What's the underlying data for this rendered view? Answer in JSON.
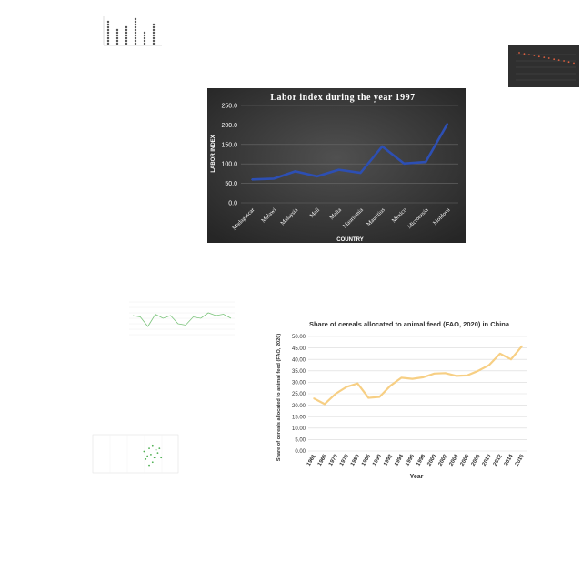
{
  "chart_data": [
    {
      "id": "labor",
      "type": "line",
      "title": "Labor index during the year 1997",
      "xlabel": "COUNTRY",
      "ylabel": "LABOR INDEX",
      "ylim": [
        0,
        250
      ],
      "yticks": [
        "0.0",
        "50.0",
        "100.0",
        "150.0",
        "200.0",
        "250.0"
      ],
      "grid": true,
      "categories": [
        "Madagascar",
        "Malawi",
        "Malaysia",
        "Mali",
        "Malta",
        "Mauritania",
        "Mauritius",
        "Mexico",
        "Micronesia",
        "Moldova"
      ],
      "series": [
        {
          "values": [
            60,
            62,
            81,
            68,
            85,
            77,
            145,
            101,
            105,
            203
          ]
        }
      ],
      "colors": {
        "background": "#3b3b3b",
        "line": "#2d4fb3",
        "text": "#ffffff"
      }
    },
    {
      "id": "cereals-china",
      "type": "line",
      "title": "Share of cereals allocated to animal feed (FAO, 2020)  in China",
      "xlabel": "Year",
      "ylabel": "Share of cereals allocated to animal feed (FAO, 2020)",
      "ylim": [
        0,
        50
      ],
      "yticks": [
        "0.00",
        "5.00",
        "10.00",
        "15.00",
        "20.00",
        "25.00",
        "30.00",
        "35.00",
        "40.00",
        "45.00",
        "50.00"
      ],
      "grid": true,
      "categories": [
        "1961",
        "1965",
        "1970",
        "1975",
        "1980",
        "1985",
        "1990",
        "1992",
        "1994",
        "1996",
        "1998",
        "2000",
        "2002",
        "2004",
        "2006",
        "2008",
        "2010",
        "2012",
        "2014",
        "2016"
      ],
      "series": [
        {
          "values": [
            23.0,
            20.5,
            25.0,
            28.0,
            29.5,
            23.2,
            23.6,
            28.5,
            32.0,
            31.5,
            32.2,
            33.8,
            34.0,
            32.8,
            33.0,
            35.0,
            37.5,
            42.5,
            40.0,
            45.8
          ]
        }
      ],
      "colors": {
        "line": "#f7cf84",
        "grid": "#d9d9d9",
        "text": "#333333"
      }
    },
    {
      "id": "dot-plot-thumb",
      "type": "scatter",
      "series": [
        {
          "values": [
            9,
            6,
            7,
            10,
            5,
            8
          ]
        }
      ],
      "colors": {
        "dot": "#555555"
      }
    },
    {
      "id": "dark-thumb",
      "type": "scatter",
      "values": [
        10,
        9.6,
        9.3,
        9.0,
        8.6,
        8.3,
        8.0,
        7.6,
        7.3,
        7.0,
        6.6,
        6.2
      ],
      "colors": {
        "background": "#2f2f2f",
        "dot": "#e06040"
      }
    },
    {
      "id": "cereals-thumb",
      "type": "line",
      "values": [
        88,
        86,
        72,
        90,
        84,
        88,
        76,
        74,
        86,
        84,
        92,
        88,
        90,
        84
      ],
      "colors": {
        "line": "#7bc47b"
      }
    },
    {
      "id": "scatter-thumb",
      "type": "scatter",
      "points": [
        [
          60,
          78
        ],
        [
          64,
          72
        ],
        [
          66,
          82
        ],
        [
          68,
          74
        ],
        [
          70,
          86
        ],
        [
          72,
          70
        ],
        [
          74,
          80
        ],
        [
          76,
          76
        ],
        [
          62,
          68
        ],
        [
          70,
          64
        ],
        [
          78,
          82
        ],
        [
          66,
          60
        ],
        [
          80,
          70
        ]
      ],
      "colors": {
        "dot": "#4caf50"
      }
    }
  ]
}
